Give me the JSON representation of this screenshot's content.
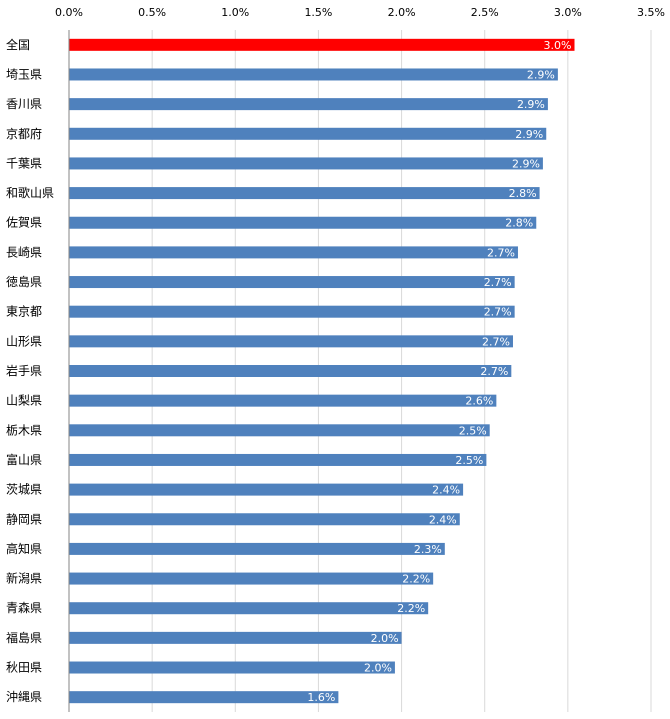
{
  "chart_data": {
    "type": "bar",
    "orientation": "horizontal",
    "title": "",
    "xlabel": "",
    "ylabel": "",
    "xlim": [
      0,
      3.5
    ],
    "x_ticks": [
      "0.0%",
      "0.5%",
      "1.0%",
      "1.5%",
      "2.0%",
      "2.5%",
      "3.0%",
      "3.5%"
    ],
    "tick_axis_position": "top",
    "grid": true,
    "categories": [
      "全国",
      "埼玉県",
      "香川県",
      "京都府",
      "千葉県",
      "和歌山県",
      "佐賀県",
      "長崎県",
      "徳島県",
      "東京都",
      "山形県",
      "岩手県",
      "山梨県",
      "栃木県",
      "富山県",
      "茨城県",
      "静岡県",
      "高知県",
      "新潟県",
      "青森県",
      "福島県",
      "秋田県",
      "沖縄県"
    ],
    "values": [
      3.04,
      2.94,
      2.88,
      2.87,
      2.85,
      2.83,
      2.81,
      2.7,
      2.68,
      2.68,
      2.67,
      2.66,
      2.57,
      2.53,
      2.51,
      2.37,
      2.35,
      2.26,
      2.19,
      2.16,
      2.0,
      1.96,
      1.62
    ],
    "data_labels": [
      "3.0%",
      "2.9%",
      "2.9%",
      "2.9%",
      "2.9%",
      "2.8%",
      "2.8%",
      "2.7%",
      "2.7%",
      "2.7%",
      "2.7%",
      "2.7%",
      "2.6%",
      "2.5%",
      "2.5%",
      "2.4%",
      "2.4%",
      "2.3%",
      "2.2%",
      "2.2%",
      "2.0%",
      "2.0%",
      "1.6%"
    ],
    "colors": {
      "highlight": "#ff0000",
      "default": "#4f81bd",
      "grid": "#d9d9d9",
      "axis": "#868686"
    },
    "highlight_index": 0
  }
}
